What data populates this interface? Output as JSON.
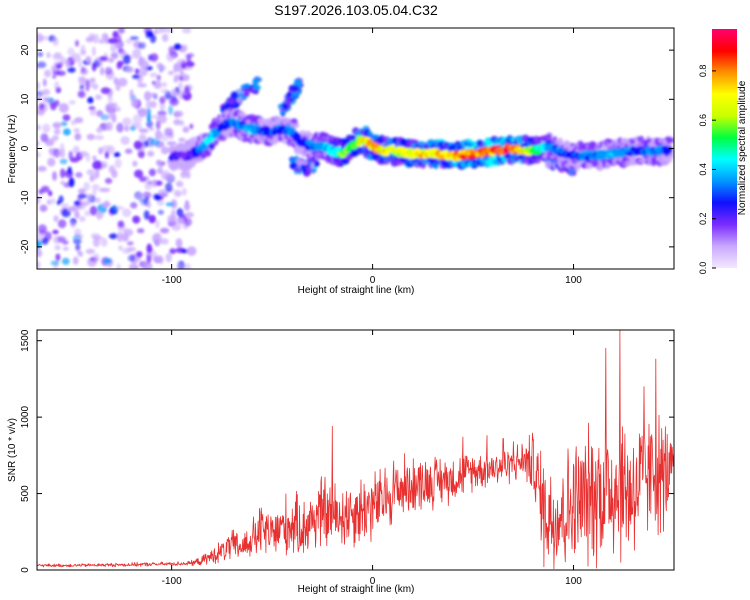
{
  "chart_data": [
    {
      "type": "heatmap",
      "title": "S197.2026.103.05.04.C32",
      "xlabel": "Height of straight line (km)",
      "ylabel": "Frequency (Hz)",
      "xlim": [
        -167,
        150
      ],
      "ylim": [
        -24.5,
        24.5
      ],
      "xticks": [
        -100,
        0,
        100
      ],
      "xtick_labels": [
        "-100",
        "0",
        "100"
      ],
      "yticks": [
        -20,
        -10,
        0,
        10,
        20
      ],
      "ytick_labels": [
        "-20",
        "-10",
        "0",
        "10",
        "20"
      ],
      "colorbar": {
        "label": "Normalized spectral amplitude",
        "range": [
          0,
          0.97
        ],
        "ticks": [
          0,
          0.2,
          0.4,
          0.6,
          0.8
        ],
        "tick_labels": [
          "0.0",
          "0.2",
          "0.4",
          "0.6",
          "0.8"
        ],
        "colormap": [
          "#f4e8ff",
          "#c9a8ff",
          "#7a2cff",
          "#1010ff",
          "#0098ff",
          "#00ffff",
          "#00ff40",
          "#c8ff00",
          "#ffff00",
          "#ff9000",
          "#ff0000",
          "#ff0070"
        ]
      },
      "ridge": {
        "description": "dominant frequency track",
        "x": [
          -100,
          -92,
          -85,
          -80,
          -75,
          -70,
          -65,
          -60,
          -55,
          -50,
          -45,
          -40,
          -35,
          -30,
          -25,
          -20,
          -15,
          -10,
          -5,
          0,
          5,
          10,
          20,
          30,
          40,
          50,
          60,
          70,
          80,
          88,
          95,
          100,
          110,
          120,
          130,
          140,
          148
        ],
        "y": [
          -1.5,
          -1.5,
          0,
          2.5,
          4.5,
          5.5,
          4.5,
          4,
          3.5,
          3.5,
          4,
          3.5,
          1,
          0.5,
          0.5,
          -0.5,
          -1,
          0.5,
          2,
          0.5,
          -0.5,
          -0.5,
          -1,
          -1,
          -1.5,
          -1,
          -0.5,
          0,
          -0.5,
          0.5,
          -1,
          -1.5,
          -1.5,
          -1,
          -0.5,
          -0.5,
          -0.5
        ],
        "amplitude": [
          0.25,
          0.2,
          0.35,
          0.45,
          0.3,
          0.3,
          0.35,
          0.4,
          0.3,
          0.3,
          0.3,
          0.35,
          0.25,
          0.35,
          0.4,
          0.45,
          0.6,
          0.55,
          0.7,
          0.8,
          0.75,
          0.65,
          0.7,
          0.75,
          0.8,
          0.85,
          0.9,
          0.9,
          0.6,
          0.35,
          0.3,
          0.3,
          0.35,
          0.4,
          0.3,
          0.35,
          0.3
        ]
      },
      "branches": [
        {
          "x": [
            -75,
            -68,
            -62,
            -57
          ],
          "y": [
            7,
            10,
            12,
            13
          ]
        },
        {
          "x": [
            -45,
            -40,
            -36
          ],
          "y": [
            8,
            11,
            13
          ]
        },
        {
          "x": [
            -40,
            -32,
            -28
          ],
          "y": [
            -3,
            -4,
            -3
          ]
        },
        {
          "x": [
            85,
            95,
            100
          ],
          "y": [
            -2,
            -3.5,
            -4
          ]
        }
      ],
      "noise_region_x": [
        -167,
        -90
      ]
    },
    {
      "type": "line",
      "title": "",
      "xlabel": "Height of straight line (km)",
      "ylabel": "SNR (10 * v/v)",
      "xlim": [
        -167,
        150
      ],
      "ylim": [
        0,
        1570
      ],
      "xticks": [
        -100,
        0,
        100
      ],
      "xtick_labels": [
        "-100",
        "0",
        "100"
      ],
      "yticks": [
        0,
        500,
        1000,
        1500
      ],
      "ytick_labels": [
        "0",
        "500",
        "1000",
        "1500"
      ],
      "line_color": "#e83030",
      "envelope": {
        "description": "approximate median and spread of the highly oscillatory SNR trace",
        "x": [
          -167,
          -150,
          -120,
          -100,
          -90,
          -85,
          -80,
          -75,
          -70,
          -65,
          -60,
          -55,
          -50,
          -45,
          -40,
          -35,
          -30,
          -25,
          -20,
          -15,
          -10,
          -5,
          0,
          5,
          10,
          20,
          30,
          40,
          50,
          60,
          70,
          75,
          80,
          85,
          90,
          100,
          110,
          120,
          130,
          140,
          145,
          150
        ],
        "median": [
          30,
          30,
          35,
          40,
          45,
          60,
          90,
          120,
          160,
          150,
          200,
          260,
          230,
          280,
          300,
          270,
          330,
          380,
          350,
          360,
          380,
          400,
          420,
          450,
          520,
          560,
          580,
          600,
          650,
          670,
          690,
          720,
          700,
          400,
          350,
          420,
          500,
          550,
          520,
          650,
          600,
          700
        ],
        "spread": [
          12,
          12,
          15,
          15,
          20,
          35,
          60,
          90,
          120,
          110,
          150,
          220,
          180,
          240,
          250,
          220,
          260,
          300,
          260,
          270,
          270,
          280,
          280,
          260,
          280,
          220,
          200,
          180,
          150,
          140,
          140,
          150,
          250,
          450,
          450,
          500,
          550,
          600,
          550,
          450,
          500,
          120
        ]
      },
      "peaks": [
        {
          "x": -20,
          "y": 940
        },
        {
          "x": 45,
          "y": 870
        },
        {
          "x": 57,
          "y": 880
        },
        {
          "x": 65,
          "y": 860
        },
        {
          "x": 70,
          "y": 840
        },
        {
          "x": 116,
          "y": 1450
        },
        {
          "x": 123,
          "y": 1570
        },
        {
          "x": 141,
          "y": 1380
        },
        {
          "x": 135,
          "y": 1200
        }
      ]
    }
  ]
}
